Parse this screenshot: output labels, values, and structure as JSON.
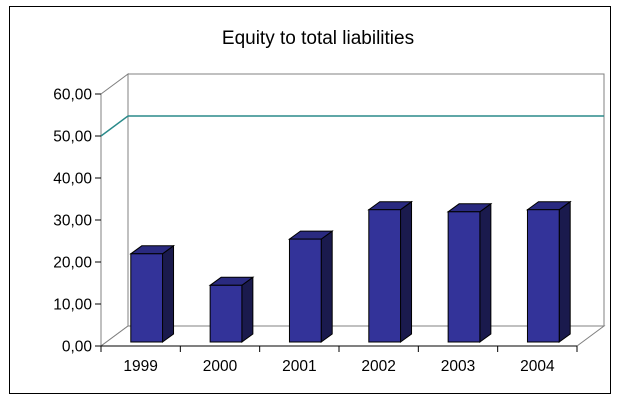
{
  "chart_data": {
    "type": "bar",
    "title": "Equity to total liabilities",
    "xlabel": "",
    "ylabel": "",
    "categories": [
      "1999",
      "2000",
      "2001",
      "2002",
      "2003",
      "2004"
    ],
    "values": [
      21.0,
      13.5,
      24.5,
      31.5,
      31.0,
      31.5
    ],
    "yticks": [
      "0,00",
      "10,00",
      "20,00",
      "30,00",
      "40,00",
      "50,00",
      "60,00"
    ],
    "ylim": [
      0,
      60
    ],
    "reference_line": {
      "value": 50,
      "color": "#2a8a8a"
    },
    "bar_color": "#333399",
    "bar_side_color": "#1a1a4d",
    "bar_top_color": "#2a2a80",
    "grid": false,
    "legend": "none"
  }
}
